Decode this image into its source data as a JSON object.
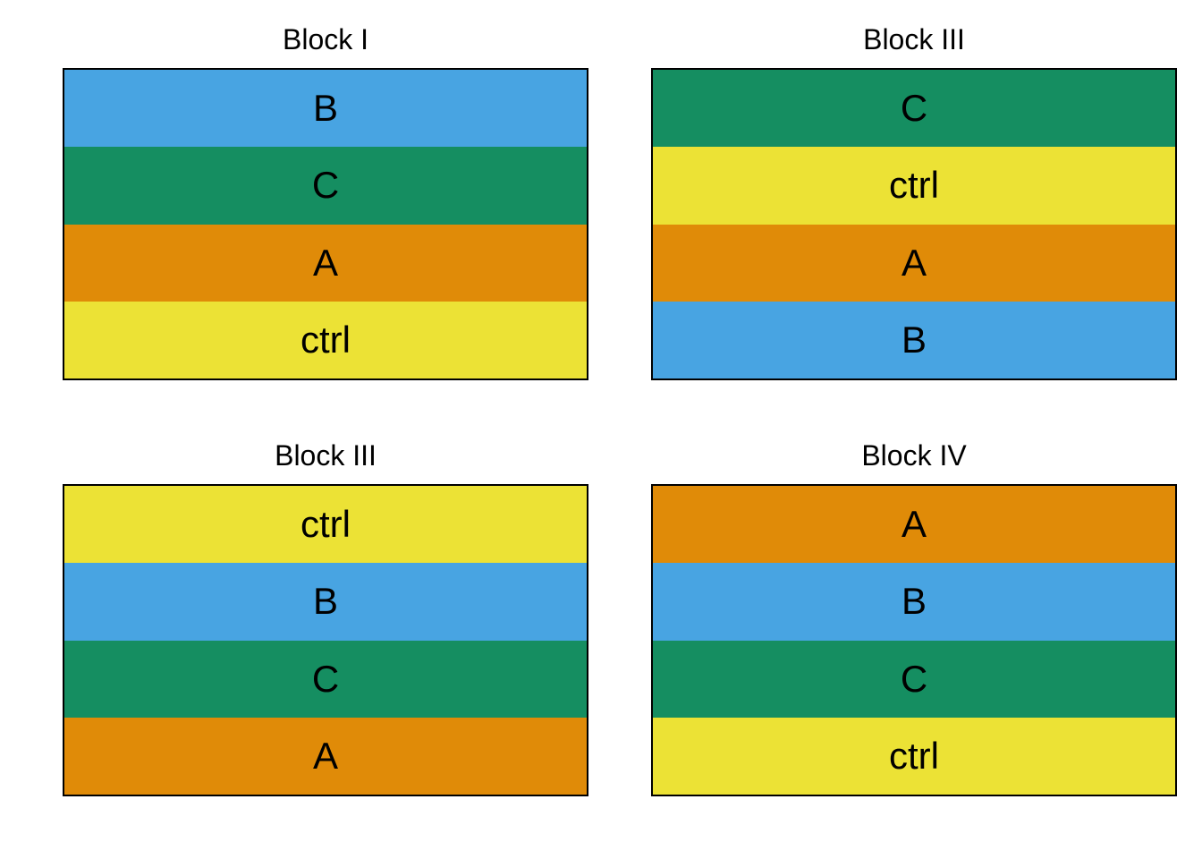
{
  "colors": {
    "A": "#e08b08",
    "B": "#48a4e2",
    "C": "#158e61",
    "ctrl": "#ece235"
  },
  "blocks": [
    {
      "title": "Block I",
      "plots": [
        "B",
        "C",
        "A",
        "ctrl"
      ]
    },
    {
      "title": "Block III",
      "plots": [
        "C",
        "ctrl",
        "A",
        "B"
      ]
    },
    {
      "title": "Block III",
      "plots": [
        "ctrl",
        "B",
        "C",
        "A"
      ]
    },
    {
      "title": "Block IV",
      "plots": [
        "A",
        "B",
        "C",
        "ctrl"
      ]
    }
  ]
}
